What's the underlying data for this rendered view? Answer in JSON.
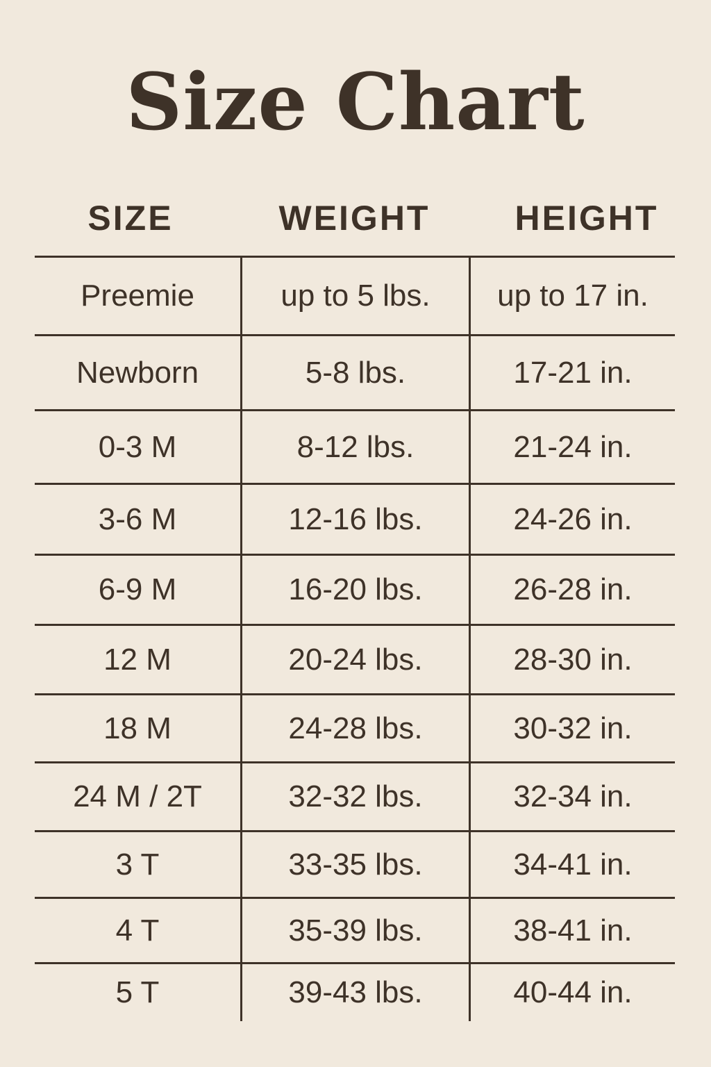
{
  "title": "Size Chart",
  "colors": {
    "background": "#f1e9dd",
    "text": "#3e3228"
  },
  "table": {
    "headers": [
      "SIZE",
      "WEIGHT",
      "HEIGHT"
    ],
    "rows": [
      [
        "Preemie",
        "up to 5 lbs.",
        "up to 17 in."
      ],
      [
        "Newborn",
        "5-8 lbs.",
        "17-21 in."
      ],
      [
        "0-3 M",
        "8-12 lbs.",
        "21-24 in."
      ],
      [
        "3-6 M",
        "12-16 lbs.",
        "24-26 in."
      ],
      [
        "6-9 M",
        "16-20 lbs.",
        "26-28 in."
      ],
      [
        "12 M",
        "20-24 lbs.",
        "28-30 in."
      ],
      [
        "18 M",
        "24-28 lbs.",
        "30-32 in."
      ],
      [
        "24 M / 2T",
        "32-32 lbs.",
        "32-34 in."
      ],
      [
        "3 T",
        "33-35 lbs.",
        "34-41 in."
      ],
      [
        "4 T",
        "35-39 lbs.",
        "38-41 in."
      ],
      [
        "5 T",
        "39-43 lbs.",
        "40-44 in."
      ]
    ]
  }
}
